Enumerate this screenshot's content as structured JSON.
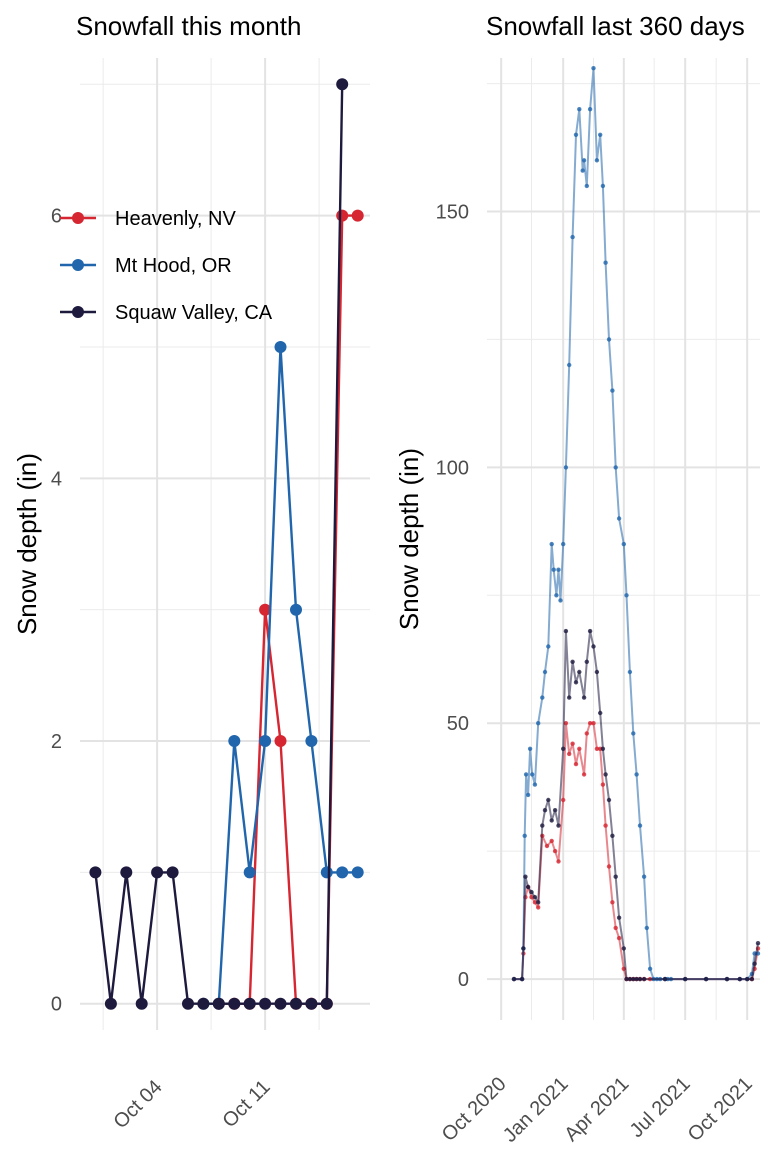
{
  "chart_data": [
    {
      "type": "line",
      "title": "Snowfall this month",
      "ylabel": "Snow depth (in)",
      "xlabel": "",
      "ylim": [
        -0.2,
        7.2
      ],
      "yticks": [
        0,
        2,
        4,
        6
      ],
      "xticks": [
        "Oct 04",
        "Oct 11"
      ],
      "grid": true,
      "legend": "top-left",
      "series": [
        {
          "name": "Heavenly, NV",
          "color": "#D62631",
          "x": [
            "2021-10-08",
            "2021-10-09",
            "2021-10-10",
            "2021-10-11",
            "2021-10-12",
            "2021-10-13",
            "2021-10-14",
            "2021-10-15",
            "2021-10-16",
            "2021-10-17"
          ],
          "values": [
            0,
            0,
            0,
            3,
            2,
            0,
            0,
            0,
            6,
            6
          ]
        },
        {
          "name": "Mt Hood, OR",
          "color": "#2166AC",
          "x": [
            "2021-10-07",
            "2021-10-08",
            "2021-10-09",
            "2021-10-10",
            "2021-10-11",
            "2021-10-12",
            "2021-10-13",
            "2021-10-14",
            "2021-10-15",
            "2021-10-16",
            "2021-10-17"
          ],
          "values": [
            0,
            0,
            2,
            1,
            2,
            5,
            3,
            2,
            1,
            1,
            1
          ]
        },
        {
          "name": "Squaw Valley, CA",
          "color": "#1D1A3E",
          "x": [
            "2021-09-30",
            "2021-10-01",
            "2021-10-02",
            "2021-10-03",
            "2021-10-04",
            "2021-10-05",
            "2021-10-06",
            "2021-10-07",
            "2021-10-08",
            "2021-10-09",
            "2021-10-10",
            "2021-10-11",
            "2021-10-12",
            "2021-10-13",
            "2021-10-14",
            "2021-10-15",
            "2021-10-16"
          ],
          "values": [
            1,
            0,
            1,
            0,
            1,
            1,
            0,
            0,
            0,
            0,
            0,
            0,
            0,
            0,
            0,
            0,
            7
          ]
        }
      ]
    },
    {
      "type": "line",
      "title": "Snowfall  last 360 days",
      "ylabel": "Snow depth (in)",
      "xlabel": "",
      "ylim": [
        -8,
        180
      ],
      "yticks": [
        0,
        50,
        100,
        150
      ],
      "xticks": [
        "Oct 2020",
        "Jan 2021",
        "Apr 2021",
        "Jul 2021",
        "Oct 2021"
      ],
      "grid": true,
      "series": [
        {
          "name": "Heavenly, NV",
          "color": "#D62631",
          "x": [
            "2020-10-20",
            "2020-11-01",
            "2020-11-03",
            "2020-11-06",
            "2020-11-10",
            "2020-11-15",
            "2020-11-20",
            "2020-11-25",
            "2020-12-01",
            "2020-12-08",
            "2020-12-15",
            "2020-12-20",
            "2020-12-25",
            "2021-01-01",
            "2021-01-05",
            "2021-01-10",
            "2021-01-15",
            "2021-01-20",
            "2021-01-25",
            "2021-02-01",
            "2021-02-05",
            "2021-02-10",
            "2021-02-15",
            "2021-02-20",
            "2021-02-25",
            "2021-03-01",
            "2021-03-05",
            "2021-03-10",
            "2021-03-15",
            "2021-03-20",
            "2021-03-25",
            "2021-04-01",
            "2021-04-05",
            "2021-04-10",
            "2021-04-15",
            "2021-04-20",
            "2021-04-25",
            "2021-05-01",
            "2021-05-10",
            "2021-06-01",
            "2021-07-01",
            "2021-08-01",
            "2021-09-01",
            "2021-09-20",
            "2021-10-01",
            "2021-10-08",
            "2021-10-12",
            "2021-10-17"
          ],
          "values": [
            0,
            0,
            5,
            16,
            18,
            16,
            15,
            14,
            28,
            26,
            27,
            25,
            23,
            35,
            50,
            44,
            46,
            42,
            45,
            40,
            48,
            50,
            50,
            45,
            45,
            38,
            30,
            22,
            15,
            10,
            8,
            2,
            0,
            0,
            0,
            0,
            0,
            0,
            0,
            0,
            0,
            0,
            0,
            0,
            0,
            0,
            2,
            6
          ]
        },
        {
          "name": "Mt Hood, OR",
          "color": "#2166AC",
          "x": [
            "2020-10-20",
            "2020-11-01",
            "2020-11-03",
            "2020-11-05",
            "2020-11-07",
            "2020-11-10",
            "2020-11-13",
            "2020-11-16",
            "2020-11-20",
            "2020-11-25",
            "2020-12-01",
            "2020-12-05",
            "2020-12-10",
            "2020-12-15",
            "2020-12-18",
            "2020-12-22",
            "2020-12-25",
            "2020-12-28",
            "2021-01-01",
            "2021-01-05",
            "2021-01-10",
            "2021-01-15",
            "2021-01-20",
            "2021-01-25",
            "2021-01-30",
            "2021-02-01",
            "2021-02-05",
            "2021-02-10",
            "2021-02-15",
            "2021-02-20",
            "2021-02-25",
            "2021-03-01",
            "2021-03-05",
            "2021-03-10",
            "2021-03-15",
            "2021-03-20",
            "2021-03-25",
            "2021-04-01",
            "2021-04-05",
            "2021-04-10",
            "2021-04-15",
            "2021-04-20",
            "2021-04-25",
            "2021-05-01",
            "2021-05-05",
            "2021-05-10",
            "2021-05-15",
            "2021-05-20",
            "2021-05-25",
            "2021-06-01",
            "2021-06-05",
            "2021-06-10",
            "2021-07-01",
            "2021-08-01",
            "2021-09-01",
            "2021-09-20",
            "2021-10-01",
            "2021-10-08",
            "2021-10-12",
            "2021-10-17"
          ],
          "values": [
            0,
            0,
            6,
            28,
            40,
            36,
            45,
            40,
            38,
            50,
            55,
            60,
            65,
            85,
            80,
            75,
            80,
            74,
            85,
            100,
            120,
            145,
            165,
            170,
            158,
            160,
            155,
            170,
            178,
            160,
            165,
            155,
            140,
            125,
            115,
            100,
            90,
            85,
            75,
            60,
            48,
            40,
            30,
            20,
            10,
            2,
            0,
            0,
            0,
            0,
            0,
            0,
            0,
            0,
            0,
            0,
            0,
            1,
            5,
            5
          ]
        },
        {
          "name": "Squaw Valley, CA",
          "color": "#1D1A3E",
          "x": [
            "2020-10-20",
            "2020-11-01",
            "2020-11-03",
            "2020-11-06",
            "2020-11-10",
            "2020-11-15",
            "2020-11-20",
            "2020-11-25",
            "2020-12-01",
            "2020-12-05",
            "2020-12-10",
            "2020-12-15",
            "2020-12-20",
            "2020-12-25",
            "2021-01-01",
            "2021-01-05",
            "2021-01-10",
            "2021-01-15",
            "2021-01-20",
            "2021-01-25",
            "2021-02-01",
            "2021-02-05",
            "2021-02-10",
            "2021-02-15",
            "2021-02-20",
            "2021-02-25",
            "2021-03-01",
            "2021-03-05",
            "2021-03-10",
            "2021-03-15",
            "2021-03-20",
            "2021-03-25",
            "2021-04-01",
            "2021-04-05",
            "2021-04-10",
            "2021-04-15",
            "2021-04-20",
            "2021-04-25",
            "2021-05-01",
            "2021-06-01",
            "2021-07-01",
            "2021-08-01",
            "2021-09-01",
            "2021-09-20",
            "2021-10-01",
            "2021-10-08",
            "2021-10-12",
            "2021-10-17"
          ],
          "values": [
            0,
            0,
            6,
            20,
            18,
            17,
            16,
            15,
            30,
            33,
            35,
            31,
            33,
            30,
            45,
            68,
            55,
            62,
            58,
            60,
            55,
            62,
            68,
            65,
            60,
            52,
            45,
            40,
            35,
            28,
            20,
            12,
            6,
            0,
            0,
            0,
            0,
            0,
            0,
            0,
            0,
            0,
            0,
            0,
            0,
            0,
            3,
            7
          ]
        }
      ]
    }
  ]
}
